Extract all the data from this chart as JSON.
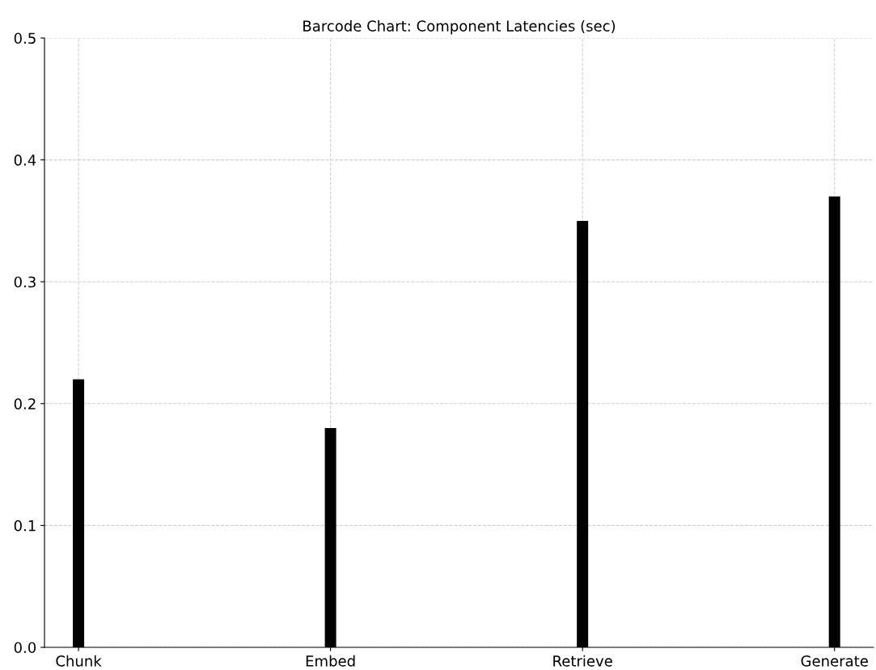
{
  "chart_data": {
    "type": "bar",
    "title": "Barcode Chart: Component Latencies (sec)",
    "categories": [
      "Chunk",
      "Embed",
      "Retrieve",
      "Generate"
    ],
    "values": [
      0.22,
      0.18,
      0.35,
      0.37
    ],
    "color": "#000000",
    "ylim": [
      0,
      0.5
    ],
    "yticks": [
      {
        "value": 0,
        "label": "0.0"
      },
      {
        "value": 0.1,
        "label": "0.1"
      },
      {
        "value": 0.2,
        "label": "0.2"
      },
      {
        "value": 0.3,
        "label": "0.3"
      },
      {
        "value": 0.4,
        "label": "0.4"
      },
      {
        "value": 0.5,
        "label": "0.5"
      }
    ],
    "grid": true
  }
}
